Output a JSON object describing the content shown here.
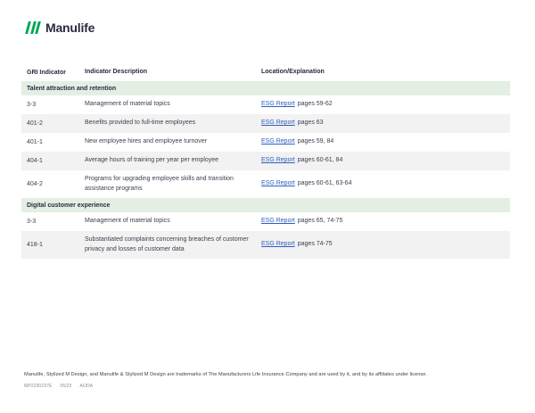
{
  "brand": {
    "name": "Manulife",
    "green": "#00a758",
    "dark": "#282b3e"
  },
  "colors": {
    "section_band_bg": "#e4efe4",
    "alt_row_bg": "#f2f2f2",
    "link_blue": "#2c5fc0",
    "body_text": "#3c4150"
  },
  "table": {
    "columns": [
      "GRI Indicator",
      "Indicator Description",
      "Location/Explanation"
    ],
    "sections": [
      {
        "title": "Talent attraction and retention",
        "rows": [
          {
            "indicator": "3-3",
            "description": "Management of material topics",
            "link_label": "ESG Report",
            "pages": "pages 59-62"
          },
          {
            "indicator": "401-2",
            "description": "Benefits provided to full-time employees",
            "link_label": "ESG Report",
            "pages": "pages 63"
          },
          {
            "indicator": "401-1",
            "description": "New employee hires and employee turnover",
            "link_label": "ESG Report",
            "pages": "pages 59, 84"
          },
          {
            "indicator": "404-1",
            "description": "Average hours of training per year per employee",
            "link_label": "ESG Report",
            "pages": "pages 60-61, 84"
          },
          {
            "indicator": "404-2",
            "description": "Programs for upgrading employee skills and transition assistance programs",
            "link_label": "ESG Report",
            "pages": "pages 60-61, 63-64"
          }
        ]
      },
      {
        "title": "Digital customer experience",
        "rows": [
          {
            "indicator": "3-3",
            "description": "Management of material topics",
            "link_label": "ESG Report",
            "pages": "pages 65, 74-75"
          },
          {
            "indicator": "418-1",
            "description": "Substantiated complaints concerning breaches of customer privacy and losses of customer data",
            "link_label": "ESG Report",
            "pages": "pages 74-75"
          }
        ]
      }
    ]
  },
  "footer": {
    "trademark": "Manulife, Stylized M Design, and Manulife & Stylized M Design are trademarks of The Manufacturers Life Insurance Company and are used by it, and by its affiliates under license.",
    "doc_code": "MP2290237E",
    "date_code": "05/23",
    "accessibility_code": "AODA"
  }
}
